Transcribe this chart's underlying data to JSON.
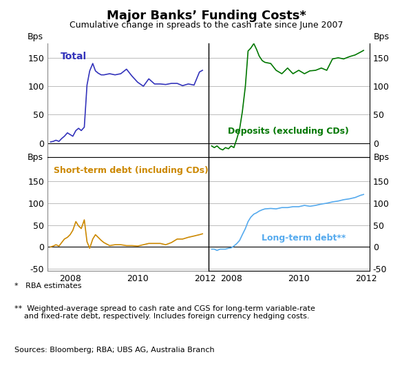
{
  "title": "Major Banks’ Funding Costs*",
  "subtitle": "Cumulative change in spreads to the cash rate since June 2007",
  "ylabel": "Bps",
  "footnotes": [
    "*   RBA estimates",
    "**  Weighted-average spread to cash rate and CGS for long-term variable-rate\n    and fixed-rate debt, respectively. Includes foreign currency hedging costs.",
    "Sources: Bloomberg; RBA; UBS AG, Australia Branch"
  ],
  "top_left": {
    "label": "Total",
    "color": "#3333bb",
    "ylim": [
      -25,
      175
    ],
    "yticks": [
      0,
      50,
      100,
      150
    ],
    "data_x": [
      2007.42,
      2007.5,
      2007.58,
      2007.67,
      2007.75,
      2007.83,
      2007.92,
      2008.0,
      2008.08,
      2008.17,
      2008.25,
      2008.33,
      2008.42,
      2008.5,
      2008.58,
      2008.67,
      2008.75,
      2008.83,
      2008.92,
      2009.0,
      2009.17,
      2009.33,
      2009.5,
      2009.67,
      2009.83,
      2010.0,
      2010.17,
      2010.33,
      2010.5,
      2010.67,
      2010.83,
      2011.0,
      2011.17,
      2011.33,
      2011.5,
      2011.67,
      2011.83,
      2011.92
    ],
    "data_y": [
      2,
      3,
      5,
      3,
      8,
      12,
      18,
      15,
      12,
      22,
      26,
      22,
      28,
      102,
      127,
      140,
      127,
      123,
      120,
      120,
      122,
      120,
      122,
      130,
      118,
      107,
      100,
      113,
      104,
      104,
      103,
      105,
      105,
      101,
      104,
      102,
      125,
      128
    ]
  },
  "top_right": {
    "label": "Deposits (excluding CDs)",
    "color": "#007700",
    "ylim": [
      -25,
      175
    ],
    "yticks": [
      0,
      50,
      100,
      150
    ],
    "data_x": [
      2007.42,
      2007.5,
      2007.58,
      2007.67,
      2007.75,
      2007.83,
      2007.92,
      2008.0,
      2008.08,
      2008.17,
      2008.25,
      2008.33,
      2008.42,
      2008.5,
      2008.58,
      2008.67,
      2008.75,
      2008.83,
      2008.92,
      2009.0,
      2009.17,
      2009.33,
      2009.5,
      2009.67,
      2009.83,
      2010.0,
      2010.17,
      2010.33,
      2010.5,
      2010.67,
      2010.83,
      2011.0,
      2011.17,
      2011.33,
      2011.5,
      2011.67,
      2011.83,
      2011.92
    ],
    "data_y": [
      -5,
      -8,
      -5,
      -10,
      -12,
      -8,
      -10,
      -5,
      -8,
      8,
      25,
      55,
      100,
      162,
      167,
      175,
      165,
      153,
      145,
      142,
      140,
      128,
      122,
      132,
      122,
      128,
      122,
      127,
      128,
      132,
      128,
      148,
      150,
      148,
      152,
      155,
      160,
      163
    ]
  },
  "bottom_left": {
    "label": "Short-term debt (including CDs)",
    "color": "#cc8800",
    "ylim": [
      -55,
      205
    ],
    "yticks": [
      -50,
      0,
      50,
      100,
      150
    ],
    "data_x": [
      2007.42,
      2007.5,
      2007.58,
      2007.67,
      2007.75,
      2007.83,
      2007.92,
      2008.0,
      2008.08,
      2008.17,
      2008.25,
      2008.33,
      2008.42,
      2008.5,
      2008.58,
      2008.67,
      2008.75,
      2008.83,
      2008.92,
      2009.0,
      2009.17,
      2009.33,
      2009.5,
      2009.67,
      2009.83,
      2010.0,
      2010.17,
      2010.33,
      2010.5,
      2010.67,
      2010.83,
      2011.0,
      2011.17,
      2011.33,
      2011.5,
      2011.67,
      2011.83,
      2011.92
    ],
    "data_y": [
      0,
      2,
      5,
      2,
      10,
      18,
      22,
      28,
      38,
      58,
      48,
      42,
      62,
      12,
      -3,
      18,
      28,
      22,
      15,
      10,
      3,
      5,
      5,
      3,
      3,
      2,
      5,
      8,
      8,
      8,
      5,
      10,
      18,
      18,
      22,
      25,
      28,
      30
    ]
  },
  "bottom_right": {
    "label": "Long-term debt**",
    "color": "#55aaee",
    "ylim": [
      -55,
      205
    ],
    "yticks": [
      -50,
      0,
      50,
      100,
      150
    ],
    "data_x": [
      2007.42,
      2007.5,
      2007.58,
      2007.67,
      2007.75,
      2007.83,
      2007.92,
      2008.0,
      2008.08,
      2008.17,
      2008.25,
      2008.33,
      2008.42,
      2008.5,
      2008.58,
      2008.67,
      2008.75,
      2008.83,
      2008.92,
      2009.0,
      2009.17,
      2009.33,
      2009.5,
      2009.67,
      2009.83,
      2010.0,
      2010.17,
      2010.33,
      2010.5,
      2010.67,
      2010.83,
      2011.0,
      2011.17,
      2011.33,
      2011.5,
      2011.67,
      2011.83,
      2011.92
    ],
    "data_y": [
      -5,
      -5,
      -8,
      -5,
      -5,
      -5,
      -3,
      -2,
      2,
      8,
      15,
      28,
      42,
      58,
      68,
      75,
      78,
      82,
      85,
      87,
      88,
      87,
      90,
      90,
      92,
      92,
      95,
      93,
      95,
      98,
      100,
      103,
      105,
      108,
      110,
      113,
      118,
      120
    ]
  },
  "xticks": [
    2008,
    2010,
    2012
  ],
  "xlim": [
    2007.33,
    2012.1
  ],
  "background_color": "#ffffff",
  "grid_color": "#bbbbbb",
  "spine_color": "#888888"
}
